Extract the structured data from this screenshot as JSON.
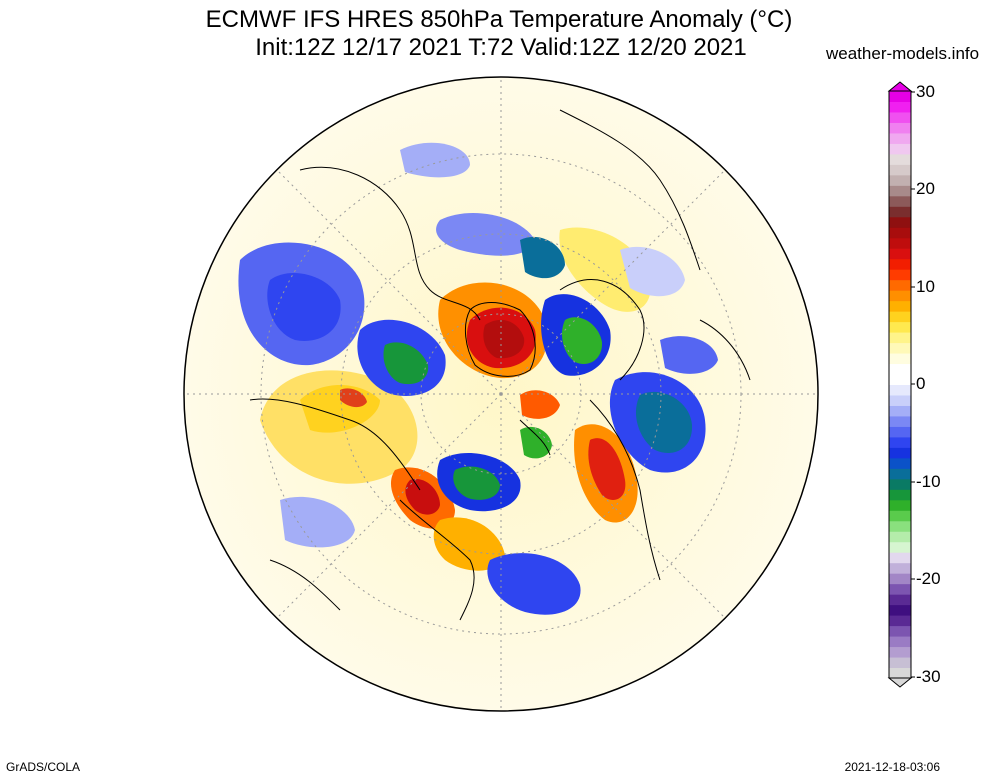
{
  "title": {
    "line1": "ECMWF IFS HRES 850hPa Temperature Anomaly (°C)",
    "line2": "Init:12Z 12/17 2021 T:72 Valid:12Z 12/20 2021"
  },
  "source": "weather-models.info",
  "footer": {
    "left": "GrADS/COLA",
    "right": "2021-12-18-03:06"
  },
  "colorbar": {
    "labels": [
      "30",
      "20",
      "10",
      "0",
      "-10",
      "-20",
      "-30"
    ],
    "min": -30,
    "max": 30,
    "colors": [
      "#d8d8d8",
      "#c7bfd4",
      "#b39dd0",
      "#9a7bc4",
      "#7c55b0",
      "#5a2a94",
      "#3f0f80",
      "#5a2a94",
      "#7c55b0",
      "#a286c6",
      "#c1b0da",
      "#e2d8ee",
      "#d6f5d0",
      "#b4ecaa",
      "#8ae07e",
      "#5acb4c",
      "#2fb02a",
      "#17963a",
      "#0a7a64",
      "#0a6e9a",
      "#0b52c8",
      "#1632e0",
      "#2f45f0",
      "#5566f2",
      "#7b88f4",
      "#a4aef7",
      "#c9cffa",
      "#e6e9fd",
      "#ffffff",
      "#ffffff",
      "#fffde0",
      "#fff9b8",
      "#fff48a",
      "#ffe94f",
      "#ffd21f",
      "#ffb000",
      "#ff8f00",
      "#ff6a00",
      "#ff3c00",
      "#f21e00",
      "#d90f0f",
      "#bf0d0d",
      "#a80d0d",
      "#8f1010",
      "#7a2e2e",
      "#8c5a5a",
      "#a88a8a",
      "#c2b0b0",
      "#d6caca",
      "#e4dcdc",
      "#f0c8f0",
      "#f0a8f0",
      "#f080f0",
      "#f050f0",
      "#f020f0",
      "#e600e6"
    ]
  }
}
